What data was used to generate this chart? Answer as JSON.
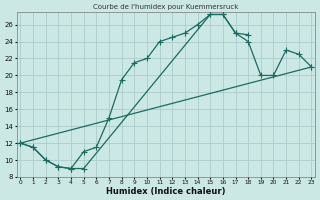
{
  "title": "Courbe de l'humidex pour Kuemmersruck",
  "xlabel": "Humidex (Indice chaleur)",
  "bg_color": "#cce8e5",
  "grid_color": "#aaccca",
  "line_color": "#1a6b60",
  "xlim": [
    0,
    23
  ],
  "ylim": [
    8,
    27
  ],
  "xticks": [
    0,
    1,
    2,
    3,
    4,
    5,
    6,
    7,
    8,
    9,
    10,
    11,
    12,
    13,
    14,
    15,
    16,
    17,
    18,
    19,
    20,
    21,
    22,
    23
  ],
  "yticks": [
    8,
    10,
    12,
    14,
    16,
    18,
    20,
    22,
    24,
    26
  ],
  "line1_x": [
    0,
    1,
    2,
    3,
    4,
    5,
    6,
    7,
    8,
    9,
    10,
    11,
    12,
    13,
    14,
    15,
    16,
    17,
    18
  ],
  "line1_y": [
    12,
    11.5,
    10,
    9.2,
    9,
    11,
    11.5,
    15,
    19.5,
    21.5,
    22,
    24,
    24.5,
    25,
    26,
    27.2,
    27.2,
    25,
    24.8
  ],
  "line2_x": [
    0,
    1,
    2,
    3,
    4,
    5,
    15,
    16,
    17,
    18,
    19,
    20,
    21,
    22,
    23
  ],
  "line2_y": [
    12,
    11.5,
    10,
    9.2,
    9,
    9,
    27.2,
    27.2,
    25,
    24,
    20,
    20,
    23,
    22.5,
    21
  ],
  "line3_x": [
    0,
    23
  ],
  "line3_y": [
    12,
    21
  ]
}
